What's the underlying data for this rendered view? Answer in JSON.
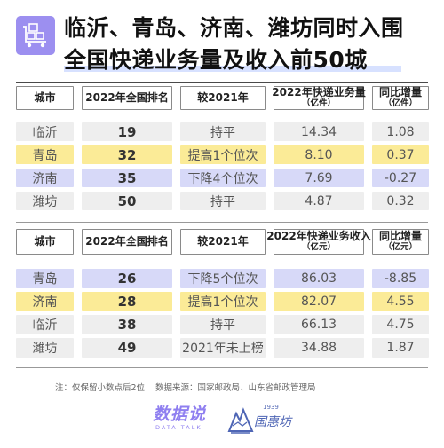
{
  "header": {
    "title_line1": "临沂、青岛、济南、潍坊同时入围",
    "title_line2": "全国快递业务量及收入前50城",
    "icon": "delivery-cart-icon"
  },
  "table1": {
    "headers": {
      "city": "城市",
      "rank": "2022年全国排名",
      "vs2021": "较2021年",
      "metric": "2022年快递业务量",
      "metric_unit": "（亿件）",
      "growth": "同比增量",
      "growth_unit": "（亿件）"
    },
    "rows": [
      {
        "city": "临沂",
        "rank": "19",
        "vs2021": "持平",
        "metric": "14.34",
        "growth": "1.08",
        "color": "gray"
      },
      {
        "city": "青岛",
        "rank": "32",
        "vs2021": "提高1个位次",
        "metric": "8.10",
        "growth": "0.37",
        "color": "yellow"
      },
      {
        "city": "济南",
        "rank": "35",
        "vs2021": "下降4个位次",
        "metric": "7.69",
        "growth": "-0.27",
        "color": "purple"
      },
      {
        "city": "潍坊",
        "rank": "50",
        "vs2021": "持平",
        "metric": "4.87",
        "growth": "0.32",
        "color": "gray"
      }
    ]
  },
  "table2": {
    "headers": {
      "city": "城市",
      "rank": "2022年全国排名",
      "vs2021": "较2021年",
      "metric": "2022年快递业务收入",
      "metric_unit": "（亿元）",
      "growth": "同比增量",
      "growth_unit": "（亿元）"
    },
    "rows": [
      {
        "city": "青岛",
        "rank": "26",
        "vs2021": "下降5个位次",
        "metric": "86.03",
        "growth": "-8.85",
        "color": "purple"
      },
      {
        "city": "济南",
        "rank": "28",
        "vs2021": "提高1个位次",
        "metric": "82.07",
        "growth": "4.55",
        "color": "yellow"
      },
      {
        "city": "临沂",
        "rank": "38",
        "vs2021": "持平",
        "metric": "66.13",
        "growth": "4.75",
        "color": "gray"
      },
      {
        "city": "潍坊",
        "rank": "49",
        "vs2021": "2021年未上榜",
        "metric": "34.88",
        "growth": "1.87",
        "color": "gray"
      }
    ]
  },
  "footnote": {
    "note": "注：仅保留小数点后2位",
    "source": "数据来源：国家邮政局、山东省邮政管理局"
  },
  "brands": {
    "brand1_name": "数据说",
    "brand1_sub": "DATA TALK",
    "brand2_year": "1939",
    "brand2_name": "国惠坊"
  },
  "colors": {
    "gray": "#eeeeee",
    "yellow": "#fbeb97",
    "purple": "#d7d9f8",
    "accent": "#9c8ff0"
  }
}
